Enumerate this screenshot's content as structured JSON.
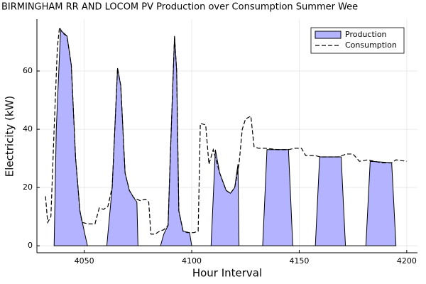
{
  "chart_data": {
    "type": "area-line",
    "title": "BIRMINGHAM RR AND LOCOM PV Production over Consumption Summer Wee",
    "x_label": "Hour Interval",
    "y_label": "Electricity (kW)",
    "xlim": [
      4028,
      4205
    ],
    "xticks": [
      4050,
      4100,
      4150,
      4200
    ],
    "ylim": [
      -2.4,
      77.8
    ],
    "yticks": [
      0,
      20,
      40,
      60
    ],
    "grid": true,
    "legend": "top-right",
    "series": [
      {
        "name": "Production",
        "color": "#b3b3ff",
        "style": "area",
        "x": [
          4036,
          4037,
          4039,
          4042,
          4044,
          4046,
          4048,
          4050,
          4051.5,
          4060.5,
          4063,
          4065.5,
          4067,
          4069,
          4071,
          4073.5,
          4074.5,
          4075,
          4085.5,
          4087,
          4089,
          4090,
          4092,
          4093,
          4094,
          4096,
          4099,
          4100,
          4109,
          4111,
          4113,
          4116,
          4118,
          4120,
          4121.5,
          4122,
          4133,
          4135,
          4145,
          4147,
          4157.5,
          4159.5,
          4169.5,
          4171.5,
          4181,
          4183,
          4193,
          4195
        ],
        "values": [
          0,
          40,
          74,
          72,
          62,
          30,
          12,
          5,
          0,
          0,
          20,
          61,
          55,
          25,
          19,
          16,
          15,
          0,
          0,
          4,
          7,
          30,
          72,
          60,
          12,
          5,
          4.5,
          0,
          0,
          33,
          25,
          19,
          18,
          20,
          28,
          0,
          0,
          33,
          33,
          0,
          0,
          30.5,
          30.5,
          0,
          0,
          29,
          28.5,
          0
        ]
      },
      {
        "name": "Consumption",
        "color": "#000000",
        "style": "dashed",
        "x": [
          4032,
          4033,
          4034.5,
          4036,
          4037.5,
          4038.5,
          4040,
          4042,
          4044,
          4046,
          4048,
          4049,
          4052,
          4055,
          4057,
          4059,
          4061,
          4063,
          4065.5,
          4067,
          4069,
          4071,
          4073,
          4076,
          4078.5,
          4080,
          4081,
          4083,
          4085,
          4087,
          4089,
          4090,
          4092,
          4093,
          4094,
          4096,
          4098,
          4101,
          4103,
          4104,
          4106.5,
          4108,
          4110,
          4113,
          4116,
          4118,
          4120,
          4122,
          4123.5,
          4125,
          4127.5,
          4129,
          4131,
          4134,
          4140,
          4145,
          4148,
          4151,
          4153,
          4157,
          4160,
          4168,
          4172,
          4175,
          4178,
          4182,
          4188,
          4193,
          4195,
          4200
        ],
        "values": [
          17,
          8,
          10,
          40,
          68,
          75,
          73,
          72,
          62,
          30,
          12,
          8,
          7.5,
          7.5,
          13,
          12.5,
          13.5,
          20,
          61,
          55,
          25,
          19,
          16.5,
          15.5,
          16,
          15,
          4,
          4,
          5,
          5.5,
          7,
          30,
          72,
          60,
          12,
          5,
          4.5,
          4.5,
          5,
          42,
          41.5,
          28,
          33,
          25,
          19,
          18,
          20,
          28,
          40,
          43.5,
          44.5,
          34,
          33.5,
          33.5,
          33,
          33,
          33.5,
          33.5,
          31,
          31,
          30.5,
          30.5,
          31.5,
          31.5,
          29,
          29.5,
          28.5,
          28.5,
          29.5,
          29
        ]
      }
    ]
  }
}
